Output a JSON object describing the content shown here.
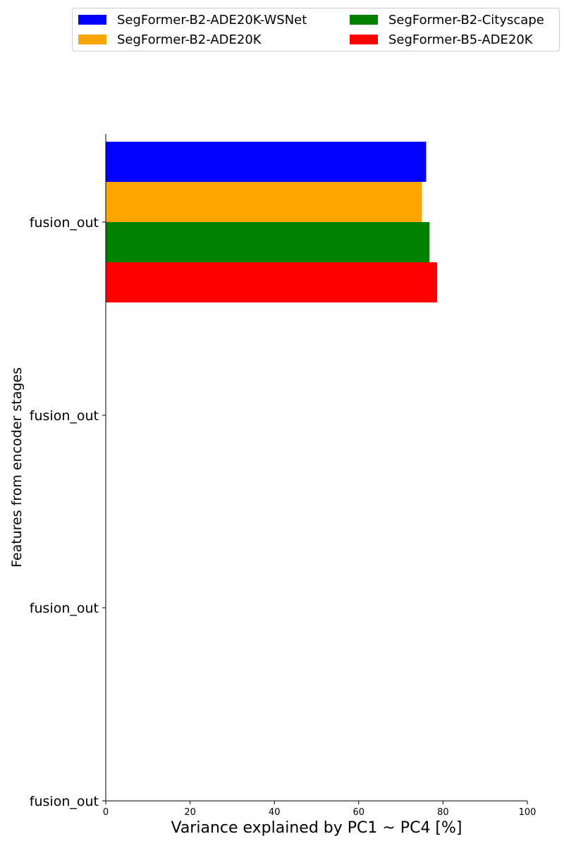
{
  "chart_data": {
    "type": "bar",
    "orientation": "horizontal",
    "categories": [
      "fusion_out",
      "fusion_out",
      "fusion_out",
      "fusion_out"
    ],
    "series": [
      {
        "name": "SegFormer-B2-ADE20K-WSNet",
        "color": "#0000ff",
        "values": [
          76.0,
          null,
          null,
          null
        ]
      },
      {
        "name": "SegFormer-B2-ADE20K",
        "color": "#ffa500",
        "values": [
          75.0,
          null,
          null,
          null
        ]
      },
      {
        "name": "SegFormer-B2-Cityscape",
        "color": "#008000",
        "values": [
          76.8,
          null,
          null,
          null
        ]
      },
      {
        "name": "SegFormer-B5-ADE20K",
        "color": "#ff0000",
        "values": [
          78.6,
          null,
          null,
          null
        ]
      }
    ],
    "xlabel": "Variance explained by PC1 ~ PC4 [%]",
    "ylabel": "Features from encoder stages",
    "xlim": [
      0,
      100
    ],
    "xticks": [
      0,
      20,
      40,
      60,
      80,
      100
    ],
    "grid": false,
    "legend_position": "top",
    "legend_columns": 2
  }
}
